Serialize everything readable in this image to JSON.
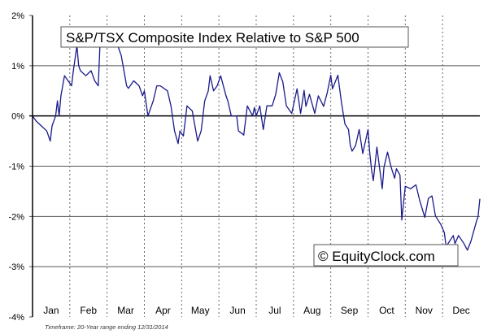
{
  "chart_data": {
    "type": "line",
    "title": "S&P/TSX Composite Index Relative to S&P 500",
    "watermark": "© EquityClock.com",
    "footnote": "Timeframe: 20-Year range ending 12/31/2014",
    "xlabel": "",
    "ylabel": "",
    "x_unit": "trading day of year",
    "xlim": [
      0,
      252
    ],
    "ylim": [
      -4,
      2
    ],
    "y_ticks": [
      2,
      1,
      0,
      -1,
      -2,
      -3,
      -4
    ],
    "y_tick_labels": [
      "2%",
      "1%",
      "0%",
      "-1%",
      "-2%",
      "-3%",
      "-4%"
    ],
    "x_tick_labels": [
      "Jan",
      "Feb",
      "Mar",
      "Apr",
      "May",
      "Jun",
      "Jul",
      "Aug",
      "Sep",
      "Oct",
      "Nov",
      "Dec"
    ],
    "grid": true,
    "line_color": "#1a1a8c",
    "series": [
      {
        "name": "S&P/TSX relative to S&P 500 (%)",
        "x": [
          0,
          2,
          5,
          8,
          10,
          11,
          13,
          14,
          15,
          16,
          18,
          20,
          22,
          23,
          25,
          26,
          27,
          30,
          33,
          35,
          37,
          38,
          40,
          44,
          48,
          50,
          53,
          54,
          57,
          60,
          62,
          63,
          65,
          68,
          70,
          72,
          76,
          78,
          80,
          82,
          83,
          85,
          87,
          90,
          92,
          93,
          95,
          97,
          99,
          100,
          102,
          104,
          106,
          109,
          110,
          112,
          115,
          116,
          118,
          119,
          121,
          124,
          125,
          126,
          128,
          130,
          132,
          135,
          137,
          139,
          141,
          143,
          146,
          149,
          151,
          153,
          154,
          156,
          159,
          161,
          164,
          166,
          168,
          169,
          172,
          174,
          176,
          178,
          179,
          180,
          182,
          184,
          186,
          189,
          190,
          191,
          192,
          194,
          197,
          198,
          200,
          202,
          204,
          205,
          207,
          208,
          210,
          213,
          216,
          218,
          221,
          223,
          225,
          227,
          230,
          232,
          233,
          237,
          238,
          240,
          243,
          245,
          247,
          250,
          251,
          252
        ],
        "values": [
          0,
          -0.1,
          -0.2,
          -0.3,
          -0.5,
          -0.2,
          0,
          0.3,
          0,
          0.4,
          0.8,
          0.7,
          0.6,
          0.9,
          1.4,
          1.0,
          0.9,
          0.8,
          0.9,
          0.7,
          0.6,
          1.4,
          1.5,
          1.45,
          1.4,
          1.2,
          0.6,
          0.55,
          0.7,
          0.6,
          0.4,
          0.5,
          0,
          0.3,
          0.6,
          0.6,
          0.5,
          0.2,
          -0.3,
          -0.55,
          -0.3,
          -0.4,
          0.2,
          0.1,
          -0.3,
          -0.5,
          -0.3,
          0.3,
          0.5,
          0.8,
          0.5,
          0.6,
          0.8,
          0.4,
          0.3,
          0,
          0,
          -0.3,
          -0.35,
          -0.38,
          0.2,
          0,
          0.17,
          0,
          0.2,
          -0.27,
          0.2,
          0.2,
          0.43,
          0.86,
          0.68,
          0.2,
          0.05,
          0.54,
          0.05,
          0.51,
          0.19,
          0.43,
          0.05,
          0.4,
          0.19,
          0.46,
          0.81,
          0.54,
          0.81,
          0.27,
          -0.16,
          -0.27,
          -0.59,
          -0.7,
          -0.59,
          -0.27,
          -0.75,
          -0.27,
          -0.75,
          -1.08,
          -1.29,
          -0.62,
          -1.45,
          -1.02,
          -0.72,
          -1.02,
          -1.24,
          -1.05,
          -1.18,
          -2.07,
          -1.4,
          -1.45,
          -1.37,
          -1.67,
          -2.02,
          -1.64,
          -1.59,
          -1.99,
          -2.16,
          -2.32,
          -2.6,
          -2.38,
          -2.54,
          -2.38,
          -2.54,
          -2.67,
          -2.49,
          -2.11,
          -2.0,
          -1.65
        ]
      }
    ]
  }
}
